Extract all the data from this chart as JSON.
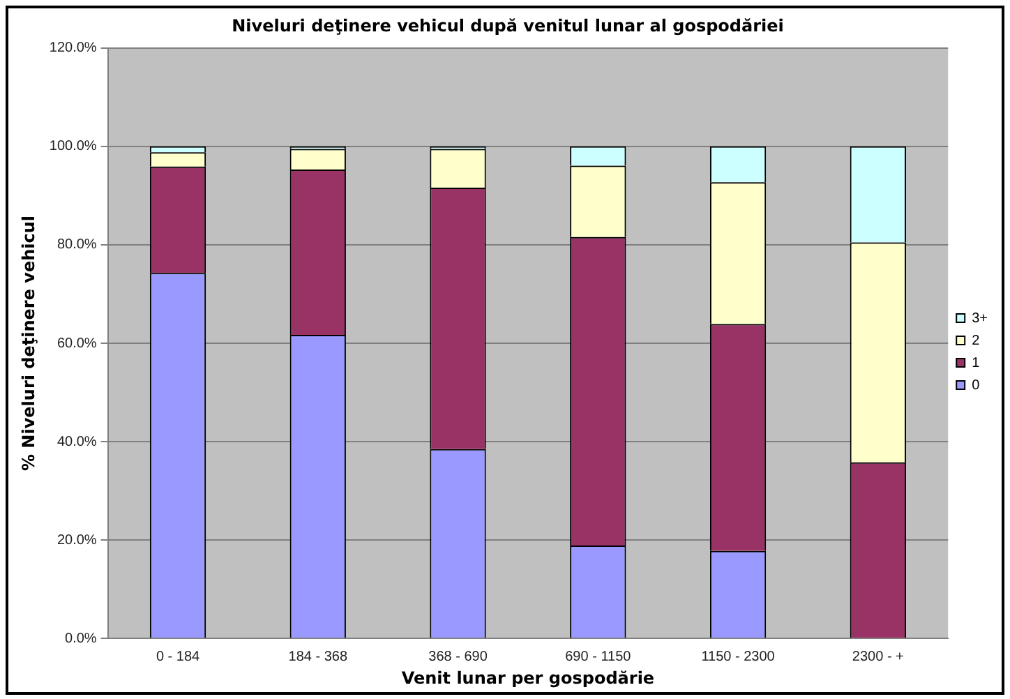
{
  "chart_data": {
    "type": "bar",
    "title": "Niveluri deţinere vehicul după venitul lunar al gospodăriei",
    "xlabel": "Venit lunar per gospodărie",
    "ylabel": "% Niveluri deţinere vehicul",
    "categories": [
      "0 - 184",
      "184 - 368",
      "368 - 690",
      "690 - 1150",
      "1150 - 2300",
      "2300 - +"
    ],
    "stacked": true,
    "series": [
      {
        "name": "0",
        "color": "#9999ff",
        "values": [
          74.3,
          61.7,
          38.5,
          18.9,
          17.8,
          0
        ]
      },
      {
        "name": "1",
        "color": "#993366",
        "values": [
          21.6,
          33.6,
          53.1,
          62.7,
          46.1,
          35.8
        ]
      },
      {
        "name": "2",
        "color": "#ffffcc",
        "values": [
          2.9,
          4.2,
          7.9,
          14.5,
          28.8,
          44.7
        ]
      },
      {
        "name": "3+",
        "color": "#ccffff",
        "values": [
          1.2,
          0.5,
          0.5,
          3.9,
          7.3,
          19.5
        ]
      }
    ],
    "ylim": [
      0,
      120
    ],
    "yticks": [
      {
        "value": 0,
        "label": "0.0%"
      },
      {
        "value": 20,
        "label": "20.0%"
      },
      {
        "value": 40,
        "label": "40.0%"
      },
      {
        "value": 60,
        "label": "60.0%"
      },
      {
        "value": 80,
        "label": "80.0%"
      },
      {
        "value": 100,
        "label": "100.0%"
      },
      {
        "value": 120,
        "label": "120.0%"
      }
    ],
    "grid": "y",
    "legend": "right"
  }
}
